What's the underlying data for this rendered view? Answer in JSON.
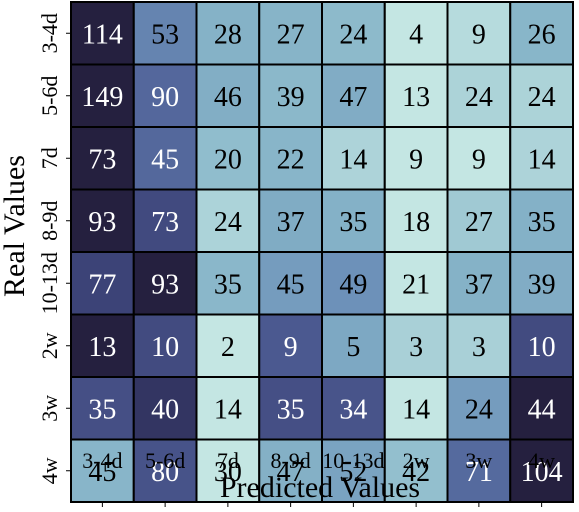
{
  "chart_data": {
    "type": "heatmap",
    "title": "",
    "xlabel": "Predicted Values",
    "ylabel": "Real Values",
    "x_categories": [
      "3-4d",
      "5-6d",
      "7d",
      "8-9d",
      "10-13d",
      "2w",
      "3w",
      "4w"
    ],
    "y_categories": [
      "3-4d",
      "5-6d",
      "7d",
      "8-9d",
      "10-13d",
      "2w",
      "3w",
      "4w"
    ],
    "values": [
      [
        114,
        53,
        28,
        27,
        24,
        4,
        9,
        26
      ],
      [
        149,
        90,
        46,
        39,
        47,
        13,
        24,
        24
      ],
      [
        73,
        45,
        20,
        22,
        14,
        9,
        9,
        14
      ],
      [
        93,
        73,
        24,
        37,
        35,
        18,
        27,
        35
      ],
      [
        77,
        93,
        35,
        45,
        49,
        21,
        37,
        39
      ],
      [
        13,
        10,
        2,
        9,
        5,
        3,
        3,
        10
      ],
      [
        35,
        40,
        14,
        35,
        34,
        14,
        24,
        44
      ],
      [
        45,
        80,
        30,
        47,
        52,
        42,
        71,
        104
      ]
    ],
    "colormap": [
      "#c4e6e3",
      "#88b6c9",
      "#6b8fb8",
      "#4f5f96",
      "#3a3f73",
      "#25203f"
    ],
    "cell_border": "#000000"
  }
}
